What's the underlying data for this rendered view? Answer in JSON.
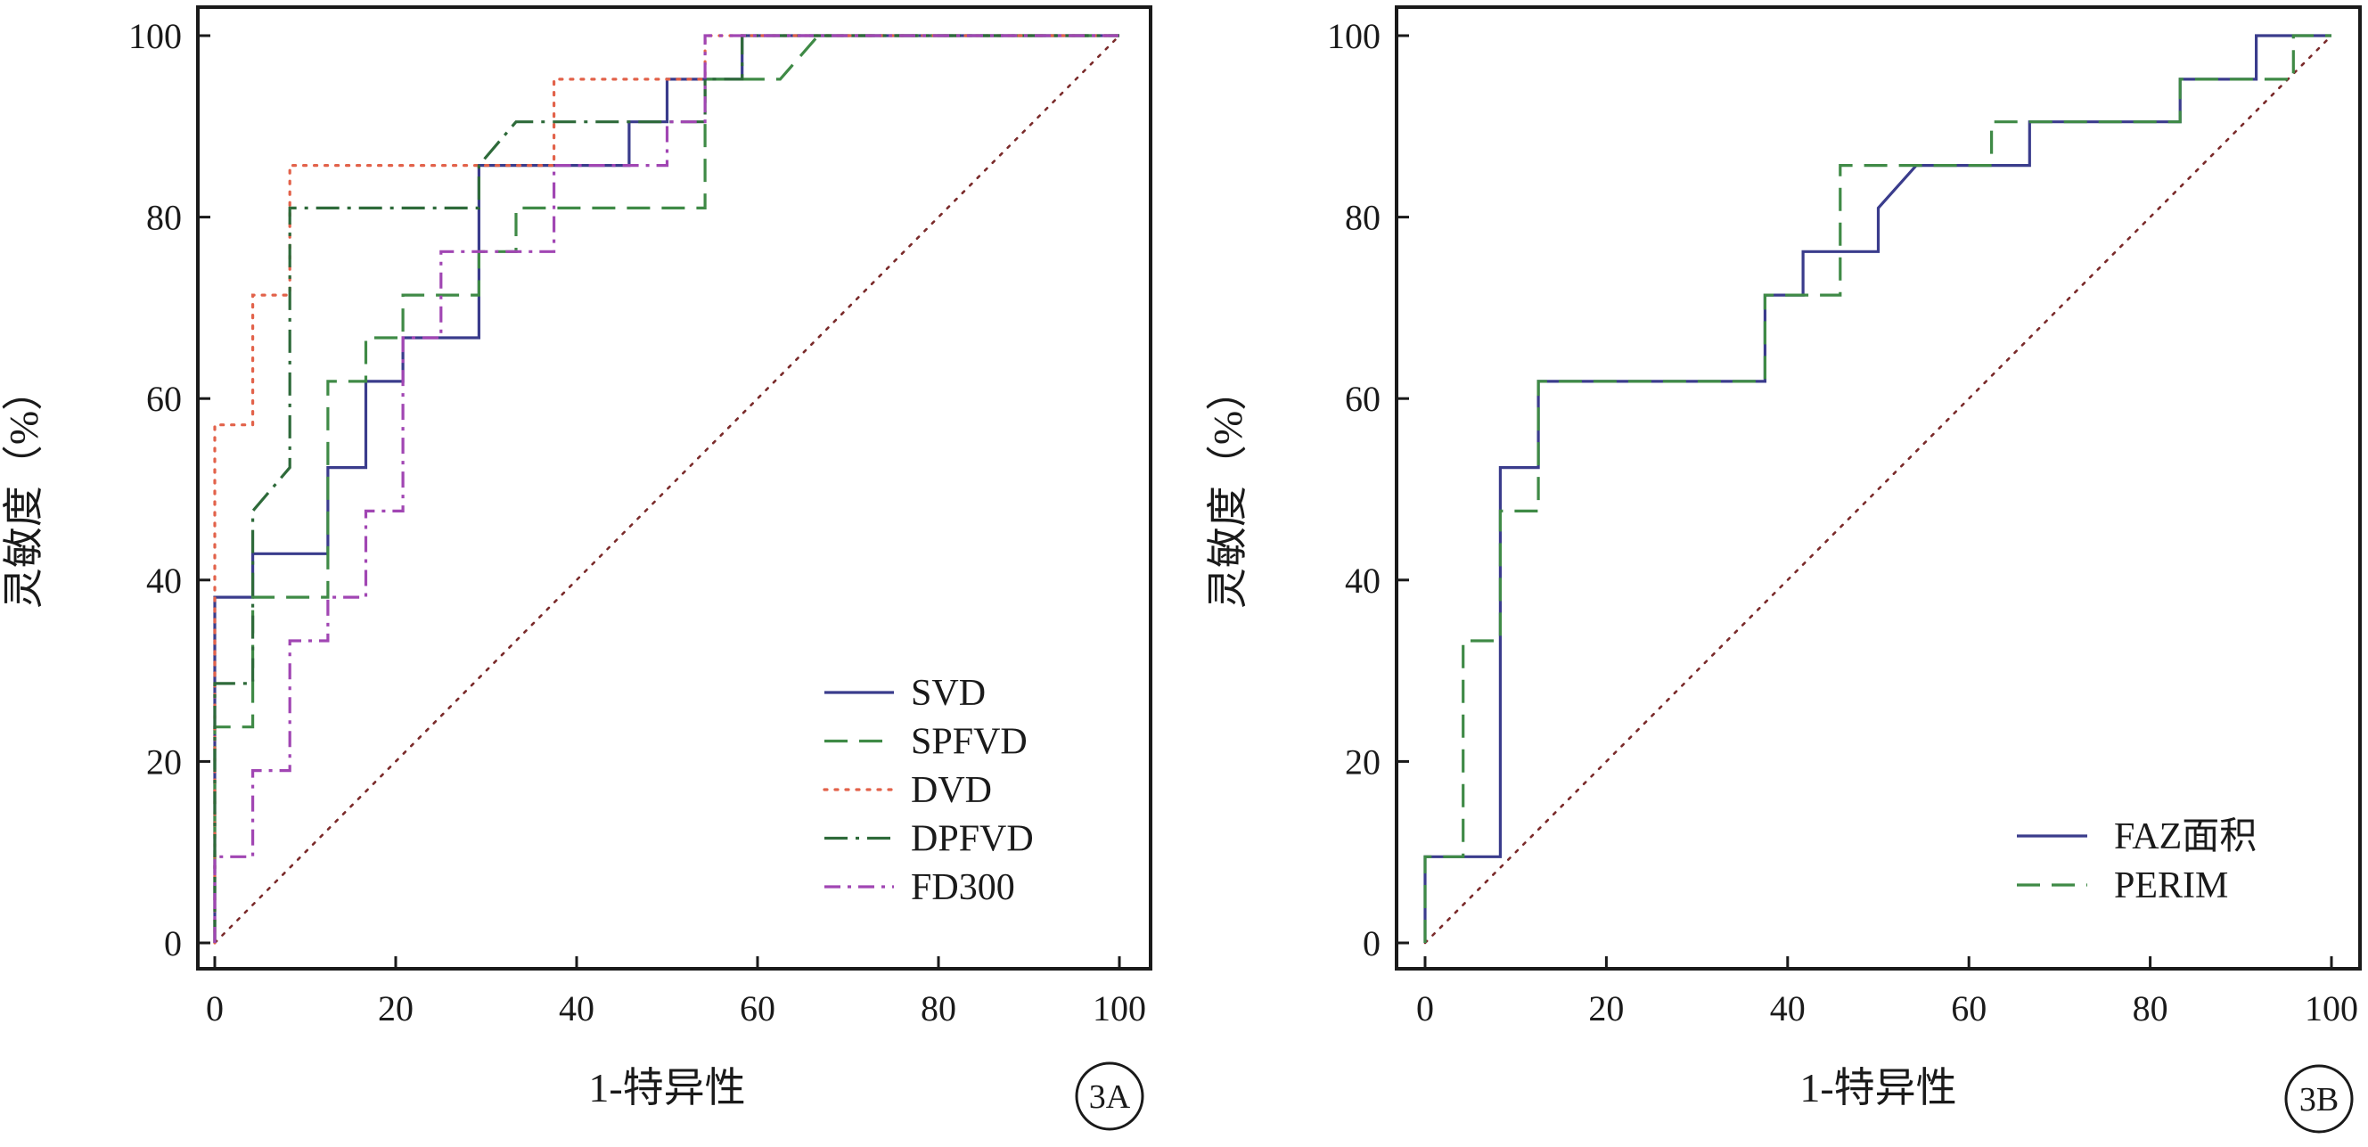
{
  "colors": {
    "frame": "#1a1a1a",
    "svd": "#3a3c8c",
    "spfvd": "#3f8a46",
    "dvd": "#e2624a",
    "dpfvd": "#2e6a3a",
    "fd300": "#a146b3",
    "faz": "#3a3c8c",
    "perim": "#3f8a46",
    "reference": "#7a2a2a"
  },
  "chart_data": [
    {
      "type": "line",
      "panel_label": "3A",
      "xlabel": "1-特异性",
      "ylabel": "灵敏度（%）",
      "xlim": [
        0,
        100
      ],
      "ylim": [
        0,
        100
      ],
      "x_ticks": [
        0,
        20,
        40,
        60,
        80,
        100
      ],
      "y_ticks": [
        0,
        20,
        40,
        60,
        80,
        100
      ],
      "grid": false,
      "legend_position": "bottom-right",
      "reference_line": [
        [
          0,
          0
        ],
        [
          100,
          100
        ]
      ],
      "series": [
        {
          "name": "SVD",
          "style": "solid",
          "color_key": "svd",
          "points": [
            [
              0,
              0
            ],
            [
              0,
              38.1
            ],
            [
              4.2,
              38.1
            ],
            [
              4.2,
              42.9
            ],
            [
              12.5,
              42.9
            ],
            [
              12.5,
              52.4
            ],
            [
              16.7,
              52.4
            ],
            [
              16.7,
              61.9
            ],
            [
              20.8,
              61.9
            ],
            [
              20.8,
              66.7
            ],
            [
              29.2,
              66.7
            ],
            [
              29.2,
              85.7
            ],
            [
              45.8,
              85.7
            ],
            [
              45.8,
              90.5
            ],
            [
              50,
              90.5
            ],
            [
              50,
              95.2
            ],
            [
              58.3,
              95.2
            ],
            [
              58.3,
              100
            ],
            [
              100,
              100
            ]
          ]
        },
        {
          "name": "SPFVD",
          "style": "dashed",
          "color_key": "spfvd",
          "points": [
            [
              0,
              0
            ],
            [
              0,
              23.8
            ],
            [
              4.2,
              23.8
            ],
            [
              4.2,
              38.1
            ],
            [
              12.5,
              38.1
            ],
            [
              12.5,
              61.9
            ],
            [
              16.7,
              61.9
            ],
            [
              16.7,
              66.7
            ],
            [
              20.8,
              66.7
            ],
            [
              20.8,
              71.4
            ],
            [
              29.2,
              71.4
            ],
            [
              29.2,
              76.2
            ],
            [
              33.3,
              76.2
            ],
            [
              33.3,
              81
            ],
            [
              54.2,
              81
            ],
            [
              54.2,
              95.2
            ],
            [
              62.5,
              95.2
            ],
            [
              66.7,
              100
            ],
            [
              100,
              100
            ]
          ]
        },
        {
          "name": "DVD",
          "style": "dotted",
          "color_key": "dvd",
          "points": [
            [
              0,
              0
            ],
            [
              0,
              57.1
            ],
            [
              4.2,
              57.1
            ],
            [
              4.2,
              71.4
            ],
            [
              8.3,
              71.4
            ],
            [
              8.3,
              85.7
            ],
            [
              37.5,
              85.7
            ],
            [
              37.5,
              95.2
            ],
            [
              54.2,
              95.2
            ],
            [
              54.2,
              100
            ],
            [
              100,
              100
            ]
          ]
        },
        {
          "name": "DPFVD",
          "style": "dashdot",
          "color_key": "dpfvd",
          "points": [
            [
              0,
              0
            ],
            [
              0,
              28.6
            ],
            [
              4.2,
              28.6
            ],
            [
              4.2,
              47.6
            ],
            [
              8.3,
              52.4
            ],
            [
              8.3,
              81
            ],
            [
              29.2,
              81
            ],
            [
              29.2,
              85.7
            ],
            [
              33.3,
              90.5
            ],
            [
              54.2,
              90.5
            ],
            [
              54.2,
              95.2
            ],
            [
              58.3,
              95.2
            ],
            [
              58.3,
              100
            ],
            [
              100,
              100
            ]
          ]
        },
        {
          "name": "FD300",
          "style": "longdashdot",
          "color_key": "fd300",
          "points": [
            [
              0,
              0
            ],
            [
              0,
              9.5
            ],
            [
              4.2,
              9.5
            ],
            [
              4.2,
              19
            ],
            [
              8.3,
              19
            ],
            [
              8.3,
              33.3
            ],
            [
              12.5,
              33.3
            ],
            [
              12.5,
              38.1
            ],
            [
              16.7,
              38.1
            ],
            [
              16.7,
              47.6
            ],
            [
              20.8,
              47.6
            ],
            [
              20.8,
              66.7
            ],
            [
              25,
              66.7
            ],
            [
              25,
              76.2
            ],
            [
              37.5,
              76.2
            ],
            [
              37.5,
              85.7
            ],
            [
              50,
              85.7
            ],
            [
              50,
              90.5
            ],
            [
              54.2,
              90.5
            ],
            [
              54.2,
              100
            ],
            [
              100,
              100
            ]
          ]
        }
      ]
    },
    {
      "type": "line",
      "panel_label": "3B",
      "xlabel": "1-特异性",
      "ylabel": "灵敏度（%）",
      "xlim": [
        0,
        100
      ],
      "ylim": [
        0,
        100
      ],
      "x_ticks": [
        0,
        20,
        40,
        60,
        80,
        100
      ],
      "y_ticks": [
        0,
        20,
        40,
        60,
        80,
        100
      ],
      "grid": false,
      "legend_position": "bottom-right",
      "reference_line": [
        [
          0,
          0
        ],
        [
          100,
          100
        ]
      ],
      "series": [
        {
          "name": "FAZ面积",
          "style": "solid",
          "color_key": "faz",
          "points": [
            [
              0,
              0
            ],
            [
              0,
              9.5
            ],
            [
              8.3,
              9.5
            ],
            [
              8.3,
              52.4
            ],
            [
              12.5,
              52.4
            ],
            [
              12.5,
              61.9
            ],
            [
              37.5,
              61.9
            ],
            [
              37.5,
              71.4
            ],
            [
              41.7,
              71.4
            ],
            [
              41.7,
              76.2
            ],
            [
              50,
              76.2
            ],
            [
              50,
              81
            ],
            [
              54.2,
              85.7
            ],
            [
              66.7,
              85.7
            ],
            [
              66.7,
              90.5
            ],
            [
              83.3,
              90.5
            ],
            [
              83.3,
              95.2
            ],
            [
              91.7,
              95.2
            ],
            [
              91.7,
              100
            ],
            [
              100,
              100
            ]
          ]
        },
        {
          "name": "PERIM",
          "style": "dashed",
          "color_key": "perim",
          "points": [
            [
              0,
              0
            ],
            [
              0,
              9.5
            ],
            [
              4.2,
              9.5
            ],
            [
              4.2,
              33.3
            ],
            [
              8.3,
              33.3
            ],
            [
              8.3,
              47.6
            ],
            [
              12.5,
              47.6
            ],
            [
              12.5,
              61.9
            ],
            [
              37.5,
              61.9
            ],
            [
              37.5,
              71.4
            ],
            [
              45.8,
              71.4
            ],
            [
              45.8,
              85.7
            ],
            [
              62.5,
              85.7
            ],
            [
              62.5,
              90.5
            ],
            [
              83.3,
              90.5
            ],
            [
              83.3,
              95.2
            ],
            [
              95.8,
              95.2
            ],
            [
              95.8,
              100
            ],
            [
              100,
              100
            ]
          ]
        }
      ]
    }
  ]
}
